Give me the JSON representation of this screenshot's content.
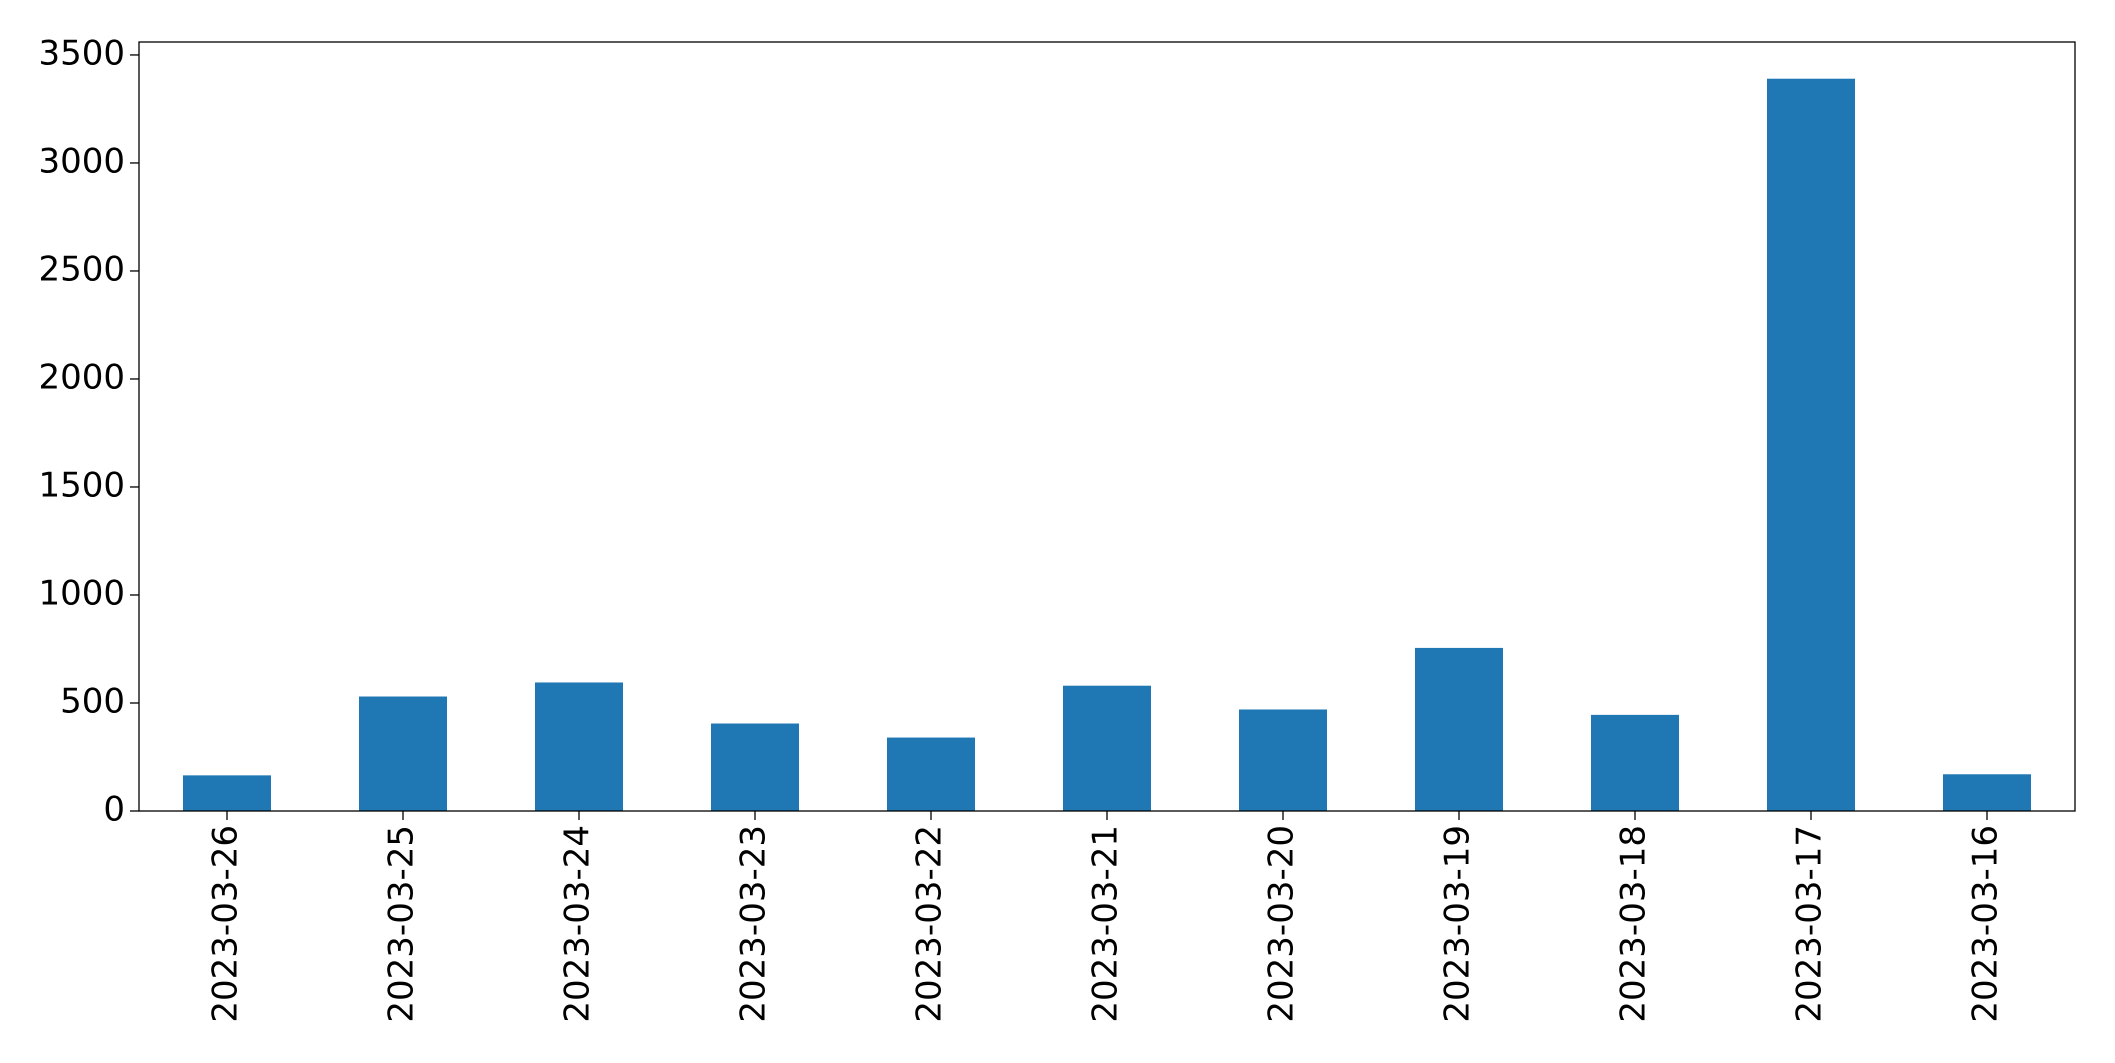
{
  "chart_data": {
    "type": "bar",
    "categories": [
      "2023-03-26",
      "2023-03-25",
      "2023-03-24",
      "2023-03-23",
      "2023-03-22",
      "2023-03-21",
      "2023-03-20",
      "2023-03-19",
      "2023-03-18",
      "2023-03-17",
      "2023-03-16"
    ],
    "values": [
      165,
      530,
      595,
      405,
      340,
      580,
      470,
      755,
      445,
      3390,
      170
    ],
    "color": "#1f77b4",
    "ylim": [
      0,
      3560
    ],
    "yticks": [
      0,
      500,
      1000,
      1500,
      2000,
      2500,
      3000,
      3500
    ],
    "grid": false
  }
}
